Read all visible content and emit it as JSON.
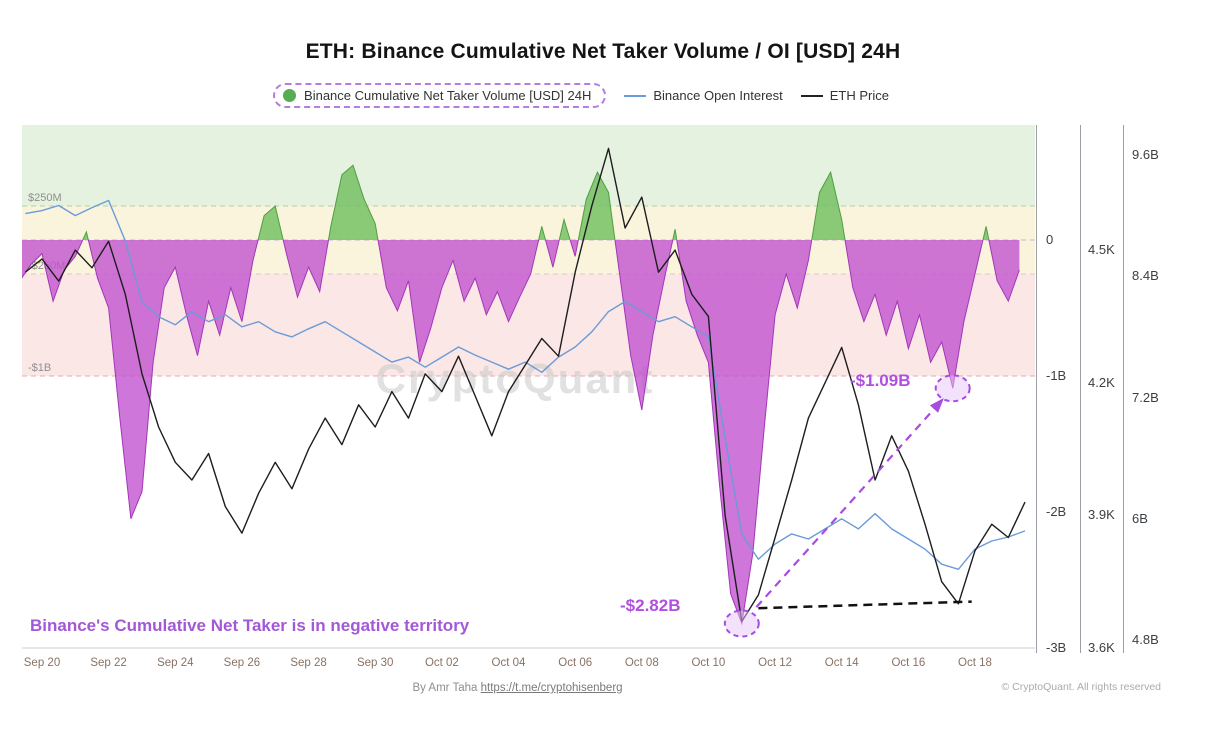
{
  "page": {
    "title": "ETH: Binance Cumulative Net Taker Volume / OI [USD] 24H",
    "watermark": "CryptoQuant",
    "footer": {
      "byline": "By Amr Taha",
      "link": "https://t.me/cryptohisenberg"
    },
    "copyright": "© CryptoQuant. All rights reserved"
  },
  "legend": {
    "items": [
      {
        "label": "Binance Cumulative Net Taker Volume [USD] 24H",
        "marker": "green-dot",
        "highlighted": true
      },
      {
        "label": "Binance Open Interest",
        "marker": "blue-line"
      },
      {
        "label": "ETH Price",
        "marker": "black-line"
      }
    ]
  },
  "chart_data": {
    "type": "area+line",
    "title": "ETH: Binance Cumulative Net Taker Volume / OI [USD] 24H",
    "x_domain_days": [
      -0.6,
      29.8
    ],
    "x_ticks": {
      "days": [
        0,
        2,
        4,
        6,
        8,
        10,
        12,
        14,
        16,
        18,
        20,
        22,
        24,
        26,
        28
      ],
      "labels": [
        "Sep 20",
        "Sep 22",
        "Sep 24",
        "Sep 26",
        "Sep 28",
        "Sep 30",
        "Oct 02",
        "Oct 04",
        "Oct 06",
        "Oct 08",
        "Oct 10",
        "Oct 12",
        "Oct 14",
        "Oct 16",
        "Oct 18"
      ]
    },
    "axes": {
      "ntv": {
        "unit": "USD billions",
        "top_value": 0.846,
        "bottom_value": -3.0,
        "ticks": [
          {
            "v": 0,
            "label": "0"
          },
          {
            "v": -1,
            "label": "-1B"
          },
          {
            "v": -2,
            "label": "-2B"
          },
          {
            "v": -3,
            "label": "-3B"
          }
        ]
      },
      "price": {
        "unit": "USD thousands",
        "top_value": 4.783,
        "bottom_value": 3.6,
        "ticks": [
          {
            "v": 4.5,
            "label": "4.5K"
          },
          {
            "v": 4.2,
            "label": "4.2K"
          },
          {
            "v": 3.9,
            "label": "3.9K"
          },
          {
            "v": 3.6,
            "label": "3.6K"
          }
        ]
      },
      "oi": {
        "unit": "USD billions",
        "top_value": 9.897,
        "bottom_value": 4.721,
        "ticks": [
          {
            "v": 9.6,
            "label": "9.6B"
          },
          {
            "v": 8.4,
            "label": "8.4B"
          },
          {
            "v": 7.2,
            "label": "7.2B"
          },
          {
            "v": 6,
            "label": "6B"
          },
          {
            "v": 4.8,
            "label": "4.8B"
          }
        ]
      }
    },
    "left_labels": [
      {
        "v": 0.25,
        "label": "$250M"
      },
      {
        "v": -0.25,
        "label": "-$250M"
      },
      {
        "v": -1,
        "label": "-$1B"
      }
    ],
    "bands": [
      {
        "hi": 0.846,
        "lo": 0.25,
        "color": "#e6f2e0"
      },
      {
        "hi": 0.25,
        "lo": -0.25,
        "color": "#fbf4dd"
      },
      {
        "hi": -0.25,
        "lo": -1.0,
        "color": "#fbe7e6"
      }
    ],
    "gridlines": [
      {
        "v": 0.25,
        "color": "#b3ceac"
      },
      {
        "v": 0,
        "color": "#c5b3d4"
      },
      {
        "v": -0.25,
        "color": "#d8ccc0"
      },
      {
        "v": -1,
        "color": "#eba6ab"
      }
    ],
    "colors": {
      "ntv_positive": "#76c163",
      "ntv_positive_stroke": "#4f9e44",
      "ntv_negative": "#c04fd0",
      "ntv_negative_stroke": "#a336b8",
      "open_interest": "#6b9bd8",
      "eth_price": "#1d1d1f",
      "annotation": "#a64ce0"
    },
    "series": [
      {
        "name": "Binance Cumulative Net Taker Volume [USD] 24H",
        "axis": "ntv",
        "type": "area",
        "unit": "USD billions",
        "t0": -0.6667,
        "t_step_days": 0.33333,
        "values": [
          -0.3,
          -0.18,
          -0.1,
          -0.45,
          -0.22,
          -0.12,
          0.06,
          -0.28,
          -0.5,
          -1.3,
          -2.05,
          -1.85,
          -0.9,
          -0.35,
          -0.2,
          -0.55,
          -0.85,
          -0.45,
          -0.7,
          -0.35,
          -0.6,
          -0.15,
          0.18,
          0.25,
          -0.1,
          -0.42,
          -0.2,
          -0.38,
          0.1,
          0.48,
          0.55,
          0.3,
          0.12,
          -0.35,
          -0.52,
          -0.3,
          -0.9,
          -0.65,
          -0.35,
          -0.15,
          -0.45,
          -0.28,
          -0.55,
          -0.38,
          -0.6,
          -0.42,
          -0.25,
          0.1,
          -0.2,
          0.15,
          -0.12,
          0.3,
          0.5,
          0.35,
          -0.25,
          -0.85,
          -1.25,
          -0.7,
          -0.3,
          0.08,
          -0.45,
          -0.7,
          -0.9,
          -1.8,
          -2.6,
          -2.82,
          -2.3,
          -1.4,
          -0.55,
          -0.25,
          -0.5,
          -0.15,
          0.35,
          0.5,
          0.15,
          -0.35,
          -0.6,
          -0.4,
          -0.7,
          -0.45,
          -0.8,
          -0.55,
          -0.9,
          -0.75,
          -1.09,
          -0.6,
          -0.25,
          0.1,
          -0.3,
          -0.45,
          -0.22
        ]
      },
      {
        "name": "Binance Open Interest",
        "axis": "oi",
        "type": "line",
        "unit": "USD billions",
        "t0": -0.5,
        "t_step_days": 0.5,
        "values": [
          9.02,
          9.05,
          9.1,
          9.0,
          9.08,
          9.15,
          8.75,
          8.15,
          8.0,
          7.92,
          8.05,
          7.95,
          8.02,
          7.9,
          7.95,
          7.85,
          7.8,
          7.88,
          7.95,
          7.85,
          7.75,
          7.65,
          7.55,
          7.6,
          7.5,
          7.6,
          7.7,
          7.62,
          7.55,
          7.48,
          7.55,
          7.45,
          7.6,
          7.7,
          7.85,
          8.05,
          8.15,
          8.05,
          7.95,
          8.0,
          7.9,
          7.8,
          6.8,
          5.85,
          5.6,
          5.75,
          5.85,
          5.8,
          5.9,
          6.0,
          5.9,
          6.05,
          5.9,
          5.8,
          5.7,
          5.55,
          5.5,
          5.7,
          5.78,
          5.82,
          5.88
        ]
      },
      {
        "name": "ETH Price",
        "axis": "price",
        "type": "line",
        "unit": "USD thousands",
        "t0": -0.5,
        "t_step_days": 0.5,
        "values": [
          4.45,
          4.48,
          4.43,
          4.5,
          4.46,
          4.52,
          4.4,
          4.22,
          4.1,
          4.02,
          3.98,
          4.04,
          3.92,
          3.86,
          3.95,
          4.02,
          3.96,
          4.05,
          4.12,
          4.06,
          4.15,
          4.1,
          4.18,
          4.12,
          4.22,
          4.18,
          4.26,
          4.17,
          4.08,
          4.18,
          4.24,
          4.3,
          4.26,
          4.45,
          4.6,
          4.73,
          4.55,
          4.62,
          4.45,
          4.5,
          4.4,
          4.35,
          3.9,
          3.66,
          3.72,
          3.85,
          3.98,
          4.12,
          4.2,
          4.28,
          4.15,
          3.98,
          4.08,
          4.0,
          3.88,
          3.75,
          3.7,
          3.82,
          3.88,
          3.85,
          3.93
        ]
      }
    ],
    "annotations": {
      "points": [
        {
          "t": 21.0,
          "v": -2.82,
          "axis": "ntv",
          "label": "-$2.82B"
        },
        {
          "t": 27.33,
          "v": -1.09,
          "axis": "ntv",
          "label": "-$1.09B"
        }
      ],
      "arrow": {
        "from": [
          21.0,
          -2.82
        ],
        "to": [
          27.33,
          -1.09
        ],
        "axis": "ntv"
      },
      "baseline": {
        "from": [
          21.5,
          3.69
        ],
        "to": [
          27.9,
          3.705
        ],
        "axis": "price"
      },
      "note": "Binance's Cumulative Net Taker is in negative territory"
    }
  }
}
